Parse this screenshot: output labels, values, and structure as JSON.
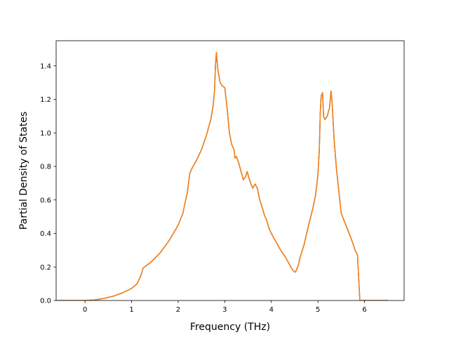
{
  "chart_data": {
    "type": "line",
    "title": "",
    "xlabel": "Frequency (THz)",
    "ylabel": "Partial Density of States",
    "xlim": [
      -0.62,
      6.85
    ],
    "ylim": [
      0.0,
      1.55
    ],
    "xticks": [
      0,
      1,
      2,
      3,
      4,
      5,
      6
    ],
    "yticks": [
      0.0,
      0.2,
      0.4,
      0.6,
      0.8,
      1.0,
      1.2,
      1.4
    ],
    "grid": false,
    "legend": "none",
    "colors": {
      "series_a": "#1f77b4",
      "series_b": "#ff7f0e"
    },
    "series": [
      {
        "points": [
          [
            -0.6,
            0.0
          ],
          [
            0.0,
            0.0
          ],
          [
            0.2,
            0.003
          ],
          [
            0.4,
            0.012
          ],
          [
            0.6,
            0.025
          ],
          [
            0.8,
            0.045
          ],
          [
            1.0,
            0.072
          ],
          [
            1.12,
            0.1
          ],
          [
            1.2,
            0.15
          ],
          [
            1.25,
            0.195
          ],
          [
            1.4,
            0.225
          ],
          [
            1.6,
            0.28
          ],
          [
            1.8,
            0.355
          ],
          [
            2.0,
            0.45
          ],
          [
            2.1,
            0.52
          ],
          [
            2.2,
            0.65
          ],
          [
            2.25,
            0.76
          ],
          [
            2.3,
            0.79
          ],
          [
            2.4,
            0.84
          ],
          [
            2.5,
            0.9
          ],
          [
            2.6,
            0.98
          ],
          [
            2.7,
            1.08
          ],
          [
            2.75,
            1.16
          ],
          [
            2.78,
            1.25
          ],
          [
            2.8,
            1.4
          ],
          [
            2.82,
            1.48
          ],
          [
            2.85,
            1.38
          ],
          [
            2.9,
            1.3
          ],
          [
            2.95,
            1.28
          ],
          [
            3.0,
            1.27
          ],
          [
            3.05,
            1.15
          ],
          [
            3.1,
            1.0
          ],
          [
            3.15,
            0.93
          ],
          [
            3.2,
            0.9
          ],
          [
            3.22,
            0.85
          ],
          [
            3.25,
            0.86
          ],
          [
            3.3,
            0.82
          ],
          [
            3.35,
            0.77
          ],
          [
            3.4,
            0.72
          ],
          [
            3.45,
            0.74
          ],
          [
            3.48,
            0.77
          ],
          [
            3.52,
            0.73
          ],
          [
            3.57,
            0.69
          ],
          [
            3.6,
            0.67
          ],
          [
            3.65,
            0.695
          ],
          [
            3.7,
            0.67
          ],
          [
            3.75,
            0.6
          ],
          [
            3.8,
            0.56
          ],
          [
            3.85,
            0.51
          ],
          [
            3.9,
            0.48
          ],
          [
            3.95,
            0.43
          ],
          [
            4.0,
            0.4
          ],
          [
            4.1,
            0.35
          ],
          [
            4.2,
            0.3
          ],
          [
            4.3,
            0.26
          ],
          [
            4.4,
            0.21
          ],
          [
            4.45,
            0.185
          ],
          [
            4.5,
            0.17
          ],
          [
            4.52,
            0.17
          ],
          [
            4.58,
            0.21
          ],
          [
            4.62,
            0.26
          ],
          [
            4.7,
            0.33
          ],
          [
            4.8,
            0.45
          ],
          [
            4.9,
            0.56
          ],
          [
            4.95,
            0.63
          ],
          [
            5.0,
            0.75
          ],
          [
            5.03,
            0.9
          ],
          [
            5.05,
            1.12
          ],
          [
            5.07,
            1.22
          ],
          [
            5.1,
            1.24
          ],
          [
            5.12,
            1.1
          ],
          [
            5.15,
            1.08
          ],
          [
            5.2,
            1.1
          ],
          [
            5.25,
            1.15
          ],
          [
            5.28,
            1.25
          ],
          [
            5.3,
            1.2
          ],
          [
            5.35,
            0.95
          ],
          [
            5.4,
            0.78
          ],
          [
            5.45,
            0.65
          ],
          [
            5.5,
            0.52
          ],
          [
            5.6,
            0.45
          ],
          [
            5.7,
            0.38
          ],
          [
            5.8,
            0.3
          ],
          [
            5.85,
            0.27
          ],
          [
            5.9,
            0.0
          ],
          [
            6.5,
            0.0
          ]
        ]
      },
      {
        "points": [
          [
            -0.6,
            0.0
          ],
          [
            0.0,
            0.0
          ],
          [
            0.2,
            0.003
          ],
          [
            0.4,
            0.012
          ],
          [
            0.6,
            0.025
          ],
          [
            0.8,
            0.045
          ],
          [
            1.0,
            0.072
          ],
          [
            1.12,
            0.1
          ],
          [
            1.2,
            0.15
          ],
          [
            1.25,
            0.195
          ],
          [
            1.4,
            0.225
          ],
          [
            1.6,
            0.28
          ],
          [
            1.8,
            0.355
          ],
          [
            2.0,
            0.45
          ],
          [
            2.1,
            0.52
          ],
          [
            2.2,
            0.65
          ],
          [
            2.25,
            0.76
          ],
          [
            2.3,
            0.79
          ],
          [
            2.4,
            0.84
          ],
          [
            2.5,
            0.9
          ],
          [
            2.6,
            0.98
          ],
          [
            2.7,
            1.08
          ],
          [
            2.75,
            1.16
          ],
          [
            2.78,
            1.25
          ],
          [
            2.8,
            1.4
          ],
          [
            2.82,
            1.48
          ],
          [
            2.85,
            1.38
          ],
          [
            2.9,
            1.3
          ],
          [
            2.95,
            1.28
          ],
          [
            3.0,
            1.27
          ],
          [
            3.05,
            1.15
          ],
          [
            3.1,
            1.0
          ],
          [
            3.15,
            0.93
          ],
          [
            3.2,
            0.9
          ],
          [
            3.22,
            0.85
          ],
          [
            3.25,
            0.86
          ],
          [
            3.3,
            0.82
          ],
          [
            3.35,
            0.77
          ],
          [
            3.4,
            0.72
          ],
          [
            3.45,
            0.74
          ],
          [
            3.48,
            0.77
          ],
          [
            3.52,
            0.73
          ],
          [
            3.57,
            0.69
          ],
          [
            3.6,
            0.67
          ],
          [
            3.65,
            0.695
          ],
          [
            3.7,
            0.67
          ],
          [
            3.75,
            0.6
          ],
          [
            3.8,
            0.56
          ],
          [
            3.85,
            0.51
          ],
          [
            3.9,
            0.48
          ],
          [
            3.95,
            0.43
          ],
          [
            4.0,
            0.4
          ],
          [
            4.1,
            0.35
          ],
          [
            4.2,
            0.3
          ],
          [
            4.3,
            0.26
          ],
          [
            4.4,
            0.21
          ],
          [
            4.45,
            0.185
          ],
          [
            4.5,
            0.17
          ],
          [
            4.52,
            0.17
          ],
          [
            4.58,
            0.21
          ],
          [
            4.62,
            0.26
          ],
          [
            4.7,
            0.33
          ],
          [
            4.8,
            0.45
          ],
          [
            4.9,
            0.56
          ],
          [
            4.95,
            0.63
          ],
          [
            5.0,
            0.75
          ],
          [
            5.03,
            0.9
          ],
          [
            5.05,
            1.12
          ],
          [
            5.07,
            1.22
          ],
          [
            5.1,
            1.24
          ],
          [
            5.12,
            1.1
          ],
          [
            5.15,
            1.08
          ],
          [
            5.2,
            1.1
          ],
          [
            5.25,
            1.15
          ],
          [
            5.28,
            1.25
          ],
          [
            5.3,
            1.2
          ],
          [
            5.35,
            0.95
          ],
          [
            5.4,
            0.78
          ],
          [
            5.45,
            0.65
          ],
          [
            5.5,
            0.52
          ],
          [
            5.6,
            0.45
          ],
          [
            5.7,
            0.38
          ],
          [
            5.8,
            0.3
          ],
          [
            5.85,
            0.27
          ],
          [
            5.9,
            0.0
          ],
          [
            6.5,
            0.0
          ]
        ]
      }
    ]
  }
}
